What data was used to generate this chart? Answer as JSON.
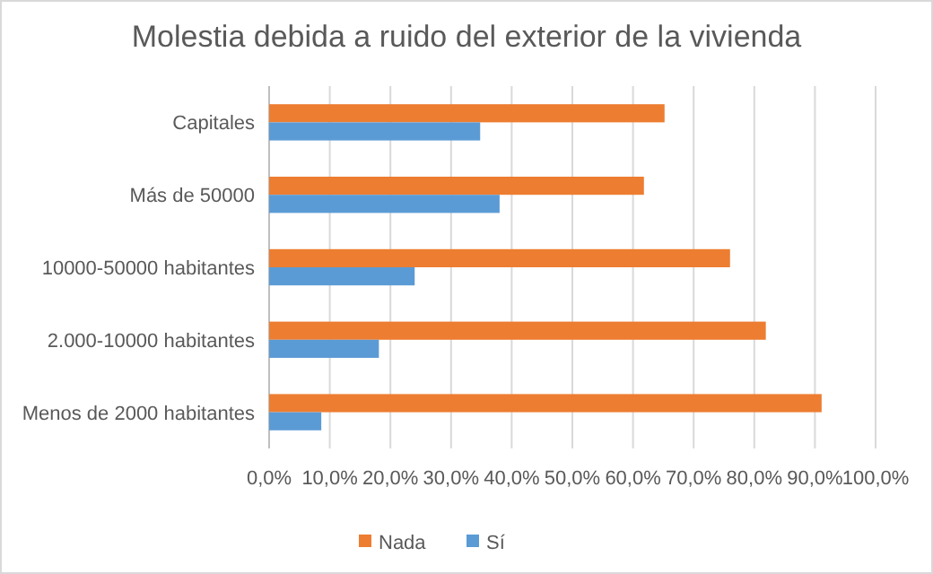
{
  "chart_data": {
    "type": "bar",
    "orientation": "horizontal",
    "title": "Molestia debida a ruido del exterior de la vivienda",
    "categories": [
      "Capitales",
      "Más de 50000",
      "10000-50000 habitantes",
      "2.000-10000 habitantes",
      "Menos de 2000 habitantes"
    ],
    "series": [
      {
        "name": "Nada",
        "color": "#ed7d31",
        "values": [
          65.2,
          61.8,
          76.0,
          81.9,
          91.1
        ]
      },
      {
        "name": "Sí",
        "color": "#5b9bd5",
        "values": [
          34.8,
          38.0,
          24.0,
          18.1,
          8.6
        ]
      }
    ],
    "xlim": [
      0,
      100
    ],
    "xticks": [
      {
        "value": 0,
        "label": "0,0%"
      },
      {
        "value": 10,
        "label": "10,0%"
      },
      {
        "value": 20,
        "label": "20,0%"
      },
      {
        "value": 30,
        "label": "30,0%"
      },
      {
        "value": 40,
        "label": "40,0%"
      },
      {
        "value": 50,
        "label": "50,0%"
      },
      {
        "value": 60,
        "label": "60,0%"
      },
      {
        "value": 70,
        "label": "70,0%"
      },
      {
        "value": 80,
        "label": "80,0%"
      },
      {
        "value": 90,
        "label": "90,0%"
      },
      {
        "value": 100,
        "label": "100,0%"
      }
    ],
    "grid": "x",
    "legend": "bottom"
  }
}
